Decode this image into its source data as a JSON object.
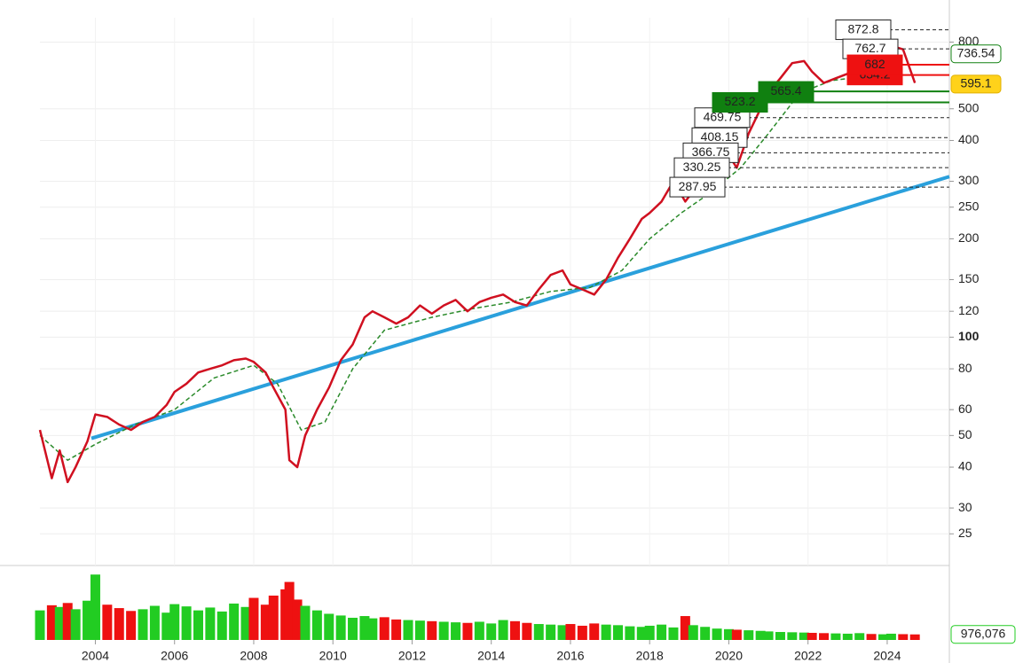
{
  "chart_data": {
    "type": "line",
    "log_scale": true,
    "grid": true,
    "xlim": [
      2002.6,
      2025.57
    ],
    "xticks": [
      2004,
      2006,
      2008,
      2010,
      2012,
      2014,
      2016,
      2018,
      2020,
      2022,
      2024
    ],
    "ylim": [
      20,
      950
    ],
    "yticks": [
      25,
      30,
      40,
      50,
      60,
      80,
      100,
      120,
      150,
      200,
      250,
      300,
      400,
      500,
      800
    ],
    "x": [
      2002.6,
      2002.9,
      2003.1,
      2003.3,
      2003.5,
      2003.8,
      2004.0,
      2004.3,
      2004.6,
      2004.9,
      2005.2,
      2005.5,
      2005.8,
      2006.0,
      2006.3,
      2006.6,
      2006.9,
      2007.2,
      2007.5,
      2007.8,
      2008.0,
      2008.3,
      2008.5,
      2008.8,
      2008.9,
      2009.1,
      2009.3,
      2009.6,
      2009.9,
      2010.2,
      2010.5,
      2010.8,
      2011.0,
      2011.3,
      2011.6,
      2011.9,
      2012.2,
      2012.5,
      2012.8,
      2013.1,
      2013.4,
      2013.7,
      2014.0,
      2014.3,
      2014.6,
      2014.9,
      2015.2,
      2015.5,
      2015.8,
      2016.0,
      2016.3,
      2016.6,
      2016.9,
      2017.2,
      2017.5,
      2017.8,
      2018.0,
      2018.3,
      2018.6,
      2018.9,
      2019.1,
      2019.4,
      2019.7,
      2020.0,
      2020.2,
      2020.5,
      2020.8,
      2021.0,
      2021.3,
      2021.6,
      2021.9,
      2022.1,
      2022.4,
      2022.7,
      2023.0,
      2023.3,
      2023.6,
      2023.9,
      2024.1,
      2024.4,
      2024.7
    ],
    "series": [
      {
        "color": "#d01020",
        "values": [
          52,
          37,
          45,
          36,
          40,
          48,
          58,
          57,
          54,
          52,
          55,
          57,
          62,
          68,
          72,
          78,
          80,
          82,
          85,
          86,
          84,
          78,
          70,
          60,
          42,
          40,
          50,
          60,
          70,
          85,
          95,
          115,
          120,
          115,
          110,
          115,
          125,
          118,
          125,
          130,
          120,
          128,
          132,
          135,
          128,
          125,
          140,
          155,
          160,
          145,
          140,
          135,
          150,
          175,
          200,
          230,
          240,
          260,
          300,
          260,
          280,
          300,
          330,
          360,
          330,
          420,
          500,
          560,
          620,
          690,
          700,
          650,
          600,
          620,
          640,
          680,
          640,
          720,
          780,
          760,
          600
        ]
      }
    ],
    "moving_average": {
      "color": "#2a8a2a",
      "x": [
        2002.6,
        2003.3,
        2004.0,
        2005.0,
        2006.0,
        2007.0,
        2008.0,
        2008.6,
        2009.2,
        2009.8,
        2010.5,
        2011.3,
        2012.5,
        2013.5,
        2014.5,
        2015.5,
        2016.5,
        2017.3,
        2018.0,
        2018.8,
        2019.5,
        2020.3,
        2021.0,
        2021.8,
        2022.6,
        2023.5,
        2024.3
      ],
      "values": [
        50,
        42,
        47,
        54,
        60,
        75,
        82,
        72,
        52,
        55,
        80,
        105,
        115,
        122,
        128,
        138,
        142,
        160,
        200,
        240,
        275,
        330,
        420,
        560,
        610,
        630,
        680
      ]
    },
    "trendline": {
      "color": "#2aa0dc",
      "x": [
        2003.9,
        2025.57
      ],
      "values": [
        49,
        310
      ]
    },
    "levels": [
      {
        "value": 872.8,
        "kind": "box"
      },
      {
        "value": 762.7,
        "kind": "box"
      },
      {
        "value": 469.75,
        "kind": "box"
      },
      {
        "value": 408.15,
        "kind": "box"
      },
      {
        "value": 366.75,
        "kind": "box"
      },
      {
        "value": 330.25,
        "kind": "box"
      },
      {
        "value": 287.95,
        "kind": "box"
      },
      {
        "value": 565.4,
        "kind": "green"
      },
      {
        "value": 523.2,
        "kind": "green"
      },
      {
        "value": 634.2,
        "kind": "red"
      },
      {
        "value": 682,
        "kind": "red"
      }
    ],
    "target": 736.54,
    "current_price": 595.1,
    "volume": {
      "ylim": [
        0,
        12000000
      ],
      "up_color": "#22cc22",
      "down_color": "#ee1111",
      "values": [
        5200000,
        6100000,
        5800000,
        6500000,
        5400000,
        6900000,
        11500000,
        6200000,
        5600000,
        5100000,
        5400000,
        6000000,
        4800000,
        6300000,
        5900000,
        5200000,
        5700000,
        5000000,
        6400000,
        5800000,
        7400000,
        6200000,
        7800000,
        8900000,
        10200000,
        7100000,
        6000000,
        5200000,
        4600000,
        4300000,
        3900000,
        4200000,
        3800000,
        4000000,
        3600000,
        3500000,
        3400000,
        3300000,
        3200000,
        3100000,
        3000000,
        3200000,
        2900000,
        3500000,
        3300000,
        3000000,
        2800000,
        2700000,
        2600000,
        2800000,
        2500000,
        2900000,
        2700000,
        2600000,
        2400000,
        2300000,
        2500000,
        2700000,
        2200000,
        4200000,
        2600000,
        2300000,
        2000000,
        1900000,
        1800000,
        1700000,
        1600000,
        1500000,
        1400000,
        1350000,
        1300000,
        1250000,
        1200000,
        1150000,
        1100000,
        1200000,
        1050000,
        1000000,
        1100000,
        1020000,
        976076
      ],
      "current": {
        "value": 976076,
        "label": "976,076"
      }
    }
  }
}
